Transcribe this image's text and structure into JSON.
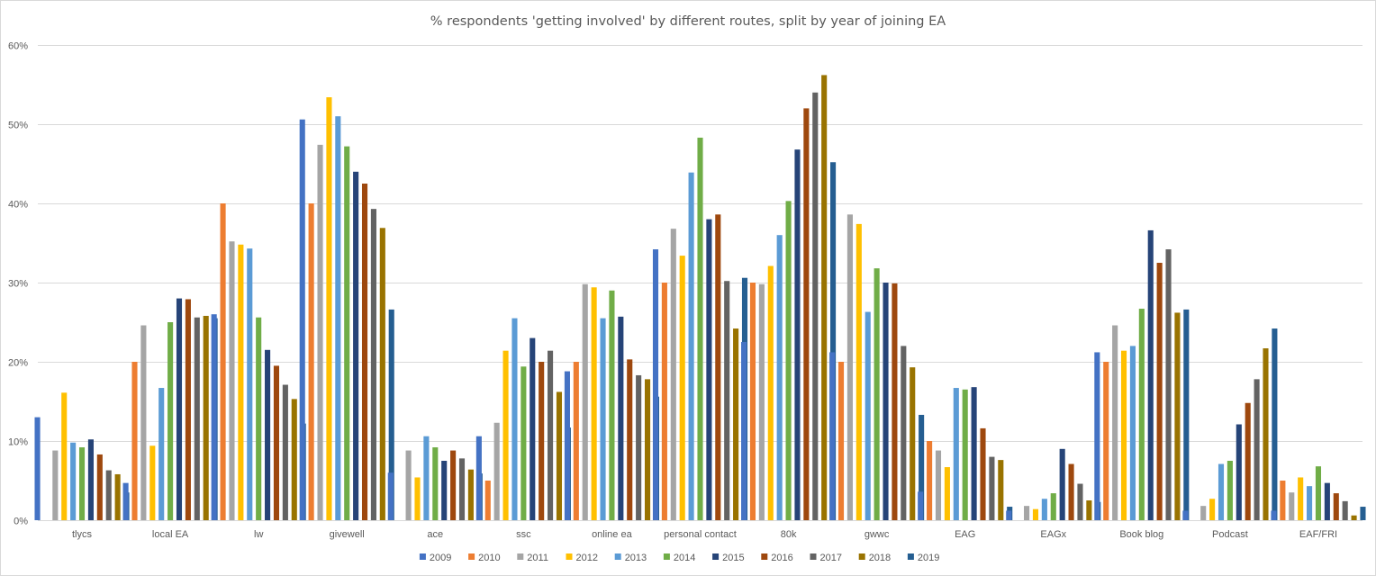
{
  "chart_data": {
    "type": "bar",
    "title": "% respondents 'getting involved' by different routes, split by year of joining EA",
    "xlabel": "",
    "ylabel": "",
    "ylim": [
      0,
      0.6
    ],
    "yticks": [
      {
        "value": 0,
        "label": "0%"
      },
      {
        "value": 0.1,
        "label": "10%"
      },
      {
        "value": 0.2,
        "label": "20%"
      },
      {
        "value": 0.3,
        "label": "30%"
      },
      {
        "value": 0.4,
        "label": "40%"
      },
      {
        "value": 0.5,
        "label": "50%"
      },
      {
        "value": 0.6,
        "label": "60%"
      }
    ],
    "grid": true,
    "legend_position": "bottom",
    "categories": [
      "tlycs",
      "local EA",
      "lw",
      "givewell",
      "ace",
      "ssc",
      "online ea",
      "personal contact",
      "80k",
      "gwwc",
      "EAG",
      "EAGx",
      "Book blog",
      "Podcast",
      "EAF/FRI"
    ],
    "series": [
      {
        "name": "2009",
        "color": "#4472c4",
        "values": [
          0.13,
          0.047,
          0.26,
          0.506,
          0.06,
          0.106,
          0.188,
          0.342,
          0.225,
          0.212,
          0.036,
          0.012,
          0.212,
          0.012,
          0.012
        ]
      },
      {
        "name": "2010",
        "color": "#ed7d31",
        "values": [
          0.0,
          0.2,
          0.4,
          0.4,
          0.0,
          0.05,
          0.2,
          0.3,
          0.3,
          0.2,
          0.1,
          0.0,
          0.2,
          0.0,
          0.05
        ]
      },
      {
        "name": "2011",
        "color": "#a5a5a5",
        "values": [
          0.088,
          0.246,
          0.352,
          0.474,
          0.088,
          0.123,
          0.298,
          0.368,
          0.298,
          0.386,
          0.088,
          0.018,
          0.246,
          0.018,
          0.035
        ]
      },
      {
        "name": "2012",
        "color": "#ffc000",
        "values": [
          0.161,
          0.094,
          0.348,
          0.534,
          0.054,
          0.214,
          0.294,
          0.334,
          0.321,
          0.374,
          0.067,
          0.014,
          0.214,
          0.027,
          0.054
        ]
      },
      {
        "name": "2013",
        "color": "#5b9bd5",
        "values": [
          0.098,
          0.167,
          0.343,
          0.51,
          0.106,
          0.255,
          0.255,
          0.439,
          0.36,
          0.263,
          0.167,
          0.027,
          0.22,
          0.071,
          0.043
        ]
      },
      {
        "name": "2014",
        "color": "#70ad47",
        "values": [
          0.092,
          0.25,
          0.256,
          0.472,
          0.092,
          0.194,
          0.29,
          0.483,
          0.403,
          0.318,
          0.165,
          0.034,
          0.267,
          0.075,
          0.068
        ]
      },
      {
        "name": "2015",
        "color": "#264478",
        "values": [
          0.102,
          0.28,
          0.215,
          0.44,
          0.075,
          0.23,
          0.257,
          0.38,
          0.468,
          0.3,
          0.168,
          0.09,
          0.366,
          0.121,
          0.047
        ]
      },
      {
        "name": "2016",
        "color": "#9e480e",
        "values": [
          0.083,
          0.279,
          0.195,
          0.425,
          0.088,
          0.2,
          0.203,
          0.386,
          0.52,
          0.299,
          0.116,
          0.071,
          0.325,
          0.148,
          0.034
        ]
      },
      {
        "name": "2017",
        "color": "#636363",
        "values": [
          0.063,
          0.256,
          0.171,
          0.393,
          0.078,
          0.214,
          0.183,
          0.302,
          0.54,
          0.22,
          0.08,
          0.046,
          0.342,
          0.178,
          0.024
        ]
      },
      {
        "name": "2018",
        "color": "#997300",
        "values": [
          0.058,
          0.258,
          0.153,
          0.369,
          0.064,
          0.162,
          0.178,
          0.242,
          0.562,
          0.193,
          0.076,
          0.025,
          0.262,
          0.217,
          0.006
        ]
      },
      {
        "name": "2019",
        "color": "#255e91",
        "values": [
          0.035,
          0.255,
          0.122,
          0.266,
          0.059,
          0.117,
          0.156,
          0.306,
          0.452,
          0.133,
          0.017,
          0.023,
          0.266,
          0.242,
          0.017
        ]
      }
    ]
  }
}
